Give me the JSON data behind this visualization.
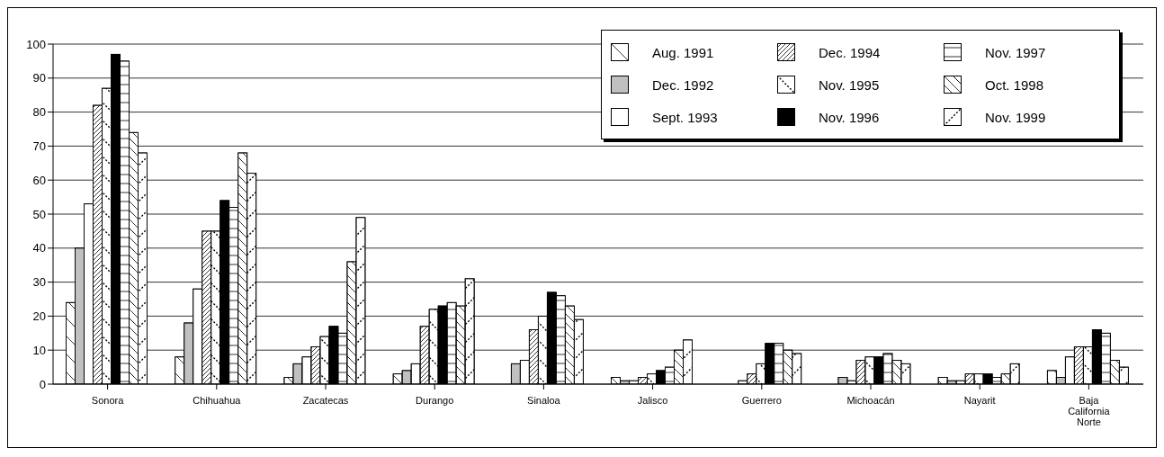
{
  "chart_data": {
    "type": "bar",
    "categories": [
      "Sonora",
      "Chihuahua",
      "Zacatecas",
      "Durango",
      "Sinaloa",
      "Jalisco",
      "Guerrero",
      "Michoacán",
      "Nayarit",
      "Baja California Norte"
    ],
    "series": [
      {
        "name": "Aug. 1991",
        "color": "#ffffff",
        "values": [
          24,
          8,
          2,
          3,
          0,
          2,
          0,
          0,
          2,
          4
        ]
      },
      {
        "name": "Dec. 1992",
        "color": "#c0c0c0",
        "values": [
          40,
          18,
          6,
          4,
          6,
          1,
          0,
          2,
          1,
          2
        ]
      },
      {
        "name": "Sept. 1993",
        "color": "#ffffff",
        "values": [
          53,
          28,
          8,
          6,
          7,
          1,
          1,
          1,
          1,
          8
        ]
      },
      {
        "name": "Dec. 1994",
        "color": "#ffffff",
        "values": [
          82,
          45,
          11,
          17,
          16,
          2,
          3,
          7,
          3,
          11
        ]
      },
      {
        "name": "Nov. 1995",
        "color": "#ffffff",
        "values": [
          87,
          45,
          14,
          22,
          20,
          3,
          6,
          8,
          3,
          11
        ]
      },
      {
        "name": "Nov. 1996",
        "color": "#000000",
        "values": [
          97,
          54,
          17,
          23,
          27,
          4,
          12,
          8,
          3,
          16
        ]
      },
      {
        "name": "Nov. 1997",
        "color": "#ffffff",
        "values": [
          95,
          52,
          15,
          24,
          26,
          5,
          12,
          9,
          2,
          15
        ]
      },
      {
        "name": "Oct. 1998",
        "color": "#ffffff",
        "values": [
          74,
          68,
          36,
          23,
          23,
          10,
          10,
          7,
          3,
          7
        ]
      },
      {
        "name": "Nov. 1999",
        "color": "#ffffff",
        "values": [
          68,
          62,
          49,
          31,
          19,
          13,
          9,
          6,
          6,
          5
        ]
      }
    ],
    "ylim": [
      0,
      100
    ],
    "yticks": [
      0,
      10,
      20,
      30,
      40,
      50,
      60,
      70,
      80,
      90,
      100
    ],
    "grid": "y",
    "legend": "top right"
  }
}
